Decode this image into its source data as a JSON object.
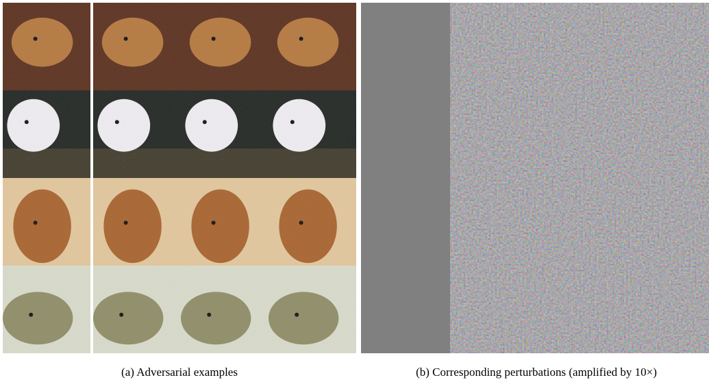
{
  "captions": {
    "a": "(a) Adversarial examples",
    "b": "(b) Corresponding perturbations (amplified by 10×)"
  }
}
